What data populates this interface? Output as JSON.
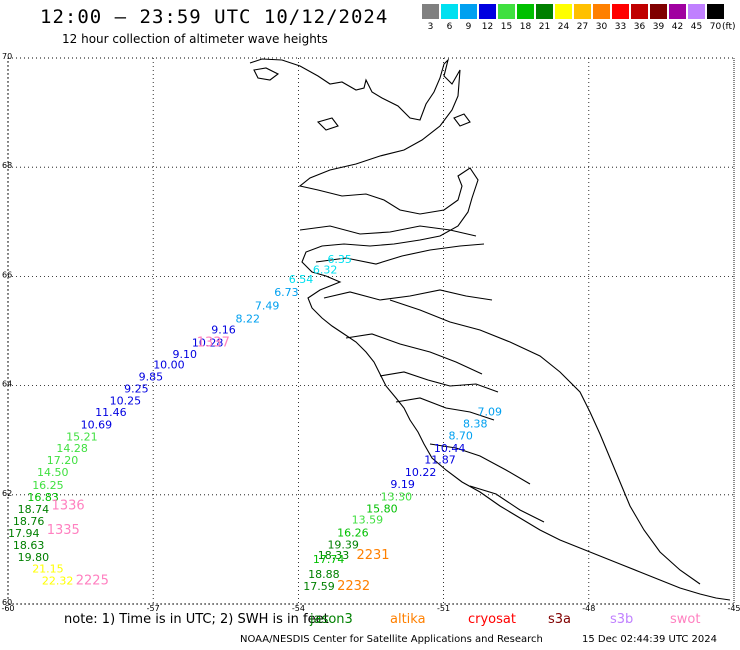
{
  "header": {
    "title": "12:00 — 23:59 UTC 10/12/2024",
    "subtitle": "12 hour collection of altimeter wave heights"
  },
  "legend": {
    "unit": "(ft)",
    "bins": [
      {
        "label": "3",
        "color": "#808080"
      },
      {
        "label": "6",
        "color": "#00e0f0"
      },
      {
        "label": "9",
        "color": "#00a0f0"
      },
      {
        "label": "12",
        "color": "#0000e0"
      },
      {
        "label": "15",
        "color": "#40e040"
      },
      {
        "label": "18",
        "color": "#00c000"
      },
      {
        "label": "21",
        "color": "#008000"
      },
      {
        "label": "24",
        "color": "#ffff00"
      },
      {
        "label": "27",
        "color": "#ffc000"
      },
      {
        "label": "30",
        "color": "#ff8000"
      },
      {
        "label": "33",
        "color": "#ff0000"
      },
      {
        "label": "36",
        "color": "#c00000"
      },
      {
        "label": "39",
        "color": "#800000"
      },
      {
        "label": "42",
        "color": "#a000a0"
      },
      {
        "label": "45",
        "color": "#c080ff"
      },
      {
        "label": "70",
        "color": "#000000"
      }
    ]
  },
  "map": {
    "lat_min": 60,
    "lat_max": 70,
    "lon_min": -60,
    "lon_max": -45,
    "lat_labels": [
      "70",
      "68",
      "66",
      "64",
      "62",
      "60"
    ],
    "lon_labels": [
      "-60",
      "-57",
      "-54",
      "-51",
      "-48",
      "-45"
    ]
  },
  "tracks": [
    {
      "points": [
        {
          "lon": -53.4,
          "lat": 66.25,
          "label": "6.35",
          "color": "#00e0f0"
        },
        {
          "lon": -53.7,
          "lat": 66.05,
          "label": "6.32",
          "color": "#00e0f0"
        },
        {
          "lon": -54.2,
          "lat": 65.88,
          "label": "6.54",
          "color": "#00e0f0"
        },
        {
          "lon": -54.5,
          "lat": 65.64,
          "label": "6.73",
          "color": "#00a0f0"
        },
        {
          "lon": -54.9,
          "lat": 65.39,
          "label": "7.49",
          "color": "#00a0f0"
        },
        {
          "lon": -55.3,
          "lat": 65.16,
          "label": "8.22",
          "color": "#00a0f0"
        },
        {
          "lon": -55.8,
          "lat": 64.95,
          "label": "9.16",
          "color": "#0000e0"
        },
        {
          "lon": -56.2,
          "lat": 64.72,
          "label": "10.28",
          "color": "#0000e0"
        },
        {
          "lon": -56.6,
          "lat": 64.51,
          "label": "9.10",
          "color": "#0000e0"
        },
        {
          "lon": -57.0,
          "lat": 64.31,
          "label": "10.00",
          "color": "#0000e0"
        },
        {
          "lon": -57.3,
          "lat": 64.09,
          "label": "9.85",
          "color": "#0000e0"
        },
        {
          "lon": -57.6,
          "lat": 63.87,
          "label": "9.25",
          "color": "#0000e0"
        },
        {
          "lon": -57.9,
          "lat": 63.65,
          "label": "10.25",
          "color": "#0000e0"
        },
        {
          "lon": -58.2,
          "lat": 63.44,
          "label": "11.46",
          "color": "#0000e0"
        },
        {
          "lon": -58.5,
          "lat": 63.21,
          "label": "10.69",
          "color": "#0000e0"
        },
        {
          "lon": -58.8,
          "lat": 62.99,
          "label": "15.21",
          "color": "#40e040"
        },
        {
          "lon": -59.0,
          "lat": 62.78,
          "label": "14.28",
          "color": "#40e040"
        },
        {
          "lon": -59.2,
          "lat": 62.56,
          "label": "17.20",
          "color": "#40e040"
        },
        {
          "lon": -59.4,
          "lat": 62.34,
          "label": "14.50",
          "color": "#40e040"
        },
        {
          "lon": -59.5,
          "lat": 62.11,
          "label": "16.25",
          "color": "#40e040"
        },
        {
          "lon": -59.6,
          "lat": 61.89,
          "label": "16.83",
          "color": "#00c000"
        },
        {
          "lon": -59.8,
          "lat": 61.67,
          "label": "18.74",
          "color": "#008000"
        },
        {
          "lon": -59.9,
          "lat": 61.45,
          "label": "18.76",
          "color": "#008000"
        },
        {
          "lon": -60.0,
          "lat": 61.23,
          "label": "17.94",
          "color": "#008000"
        },
        {
          "lon": -59.9,
          "lat": 61.01,
          "label": "18.63",
          "color": "#008000"
        },
        {
          "lon": -59.8,
          "lat": 60.79,
          "label": "19.80",
          "color": "#008000"
        },
        {
          "lon": -59.5,
          "lat": 60.58,
          "label": "21.15",
          "color": "#ffff00"
        },
        {
          "lon": -59.3,
          "lat": 60.36,
          "label": "22.32",
          "color": "#ffff00"
        }
      ],
      "ids": [
        {
          "lon": -56.1,
          "lat": 64.72,
          "label": "1337",
          "color": "#ff80c0"
        },
        {
          "lon": -59.1,
          "lat": 61.73,
          "label": "1336",
          "color": "#ff80c0"
        },
        {
          "lon": -59.2,
          "lat": 61.28,
          "label": "1335",
          "color": "#ff80c0"
        },
        {
          "lon": -58.6,
          "lat": 60.36,
          "label": "2225",
          "color": "#ff80c0"
        }
      ]
    },
    {
      "points": [
        {
          "lon": -50.3,
          "lat": 63.45,
          "label": "7.09",
          "color": "#00a0f0"
        },
        {
          "lon": -50.6,
          "lat": 63.23,
          "label": "8.38",
          "color": "#00a0f0"
        },
        {
          "lon": -50.9,
          "lat": 63.01,
          "label": "8.70",
          "color": "#00a0f0"
        },
        {
          "lon": -51.2,
          "lat": 62.78,
          "label": "10.44",
          "color": "#0000e0"
        },
        {
          "lon": -51.4,
          "lat": 62.57,
          "label": "11.87",
          "color": "#0000e0"
        },
        {
          "lon": -51.8,
          "lat": 62.34,
          "label": "10.22",
          "color": "#0000e0"
        },
        {
          "lon": -52.1,
          "lat": 62.12,
          "label": "9.19",
          "color": "#0000e0"
        },
        {
          "lon": -52.3,
          "lat": 61.9,
          "label": "13.30",
          "color": "#40e040"
        },
        {
          "lon": -52.6,
          "lat": 61.68,
          "label": "15.80",
          "color": "#00c000"
        },
        {
          "lon": -52.9,
          "lat": 61.47,
          "label": "13.59",
          "color": "#40e040"
        },
        {
          "lon": -53.2,
          "lat": 61.24,
          "label": "16.26",
          "color": "#00c000"
        },
        {
          "lon": -53.4,
          "lat": 61.02,
          "label": "19.39",
          "color": "#008000"
        },
        {
          "lon": -53.6,
          "lat": 60.82,
          "label": "18.33",
          "color": "#008000"
        },
        {
          "lon": -53.7,
          "lat": 60.75,
          "label": "17.74",
          "color": "#00c000"
        },
        {
          "lon": -53.8,
          "lat": 60.48,
          "label": "18.88",
          "color": "#008000"
        },
        {
          "lon": -53.9,
          "lat": 60.26,
          "label": "17.59",
          "color": "#008000"
        }
      ],
      "ids": [
        {
          "lon": -52.8,
          "lat": 60.82,
          "label": "2231",
          "color": "#ff8000"
        },
        {
          "lon": -53.2,
          "lat": 60.26,
          "label": "2232",
          "color": "#ff8000"
        }
      ]
    }
  ],
  "footer": {
    "note": "note:  1) Time is in UTC; 2) SWH is in feet",
    "satellites": [
      {
        "name": "jason3",
        "color": "#008000"
      },
      {
        "name": "altika",
        "color": "#ff8000"
      },
      {
        "name": "cryosat",
        "color": "#ff0000"
      },
      {
        "name": "s3a",
        "color": "#800000"
      },
      {
        "name": "s3b",
        "color": "#c080ff"
      },
      {
        "name": "swot",
        "color": "#ff80c0"
      }
    ],
    "credit": "NOAA/NESDIS Center for Satellite Applications and Research",
    "timestamp": "15 Dec 02:44:39 UTC 2024"
  }
}
